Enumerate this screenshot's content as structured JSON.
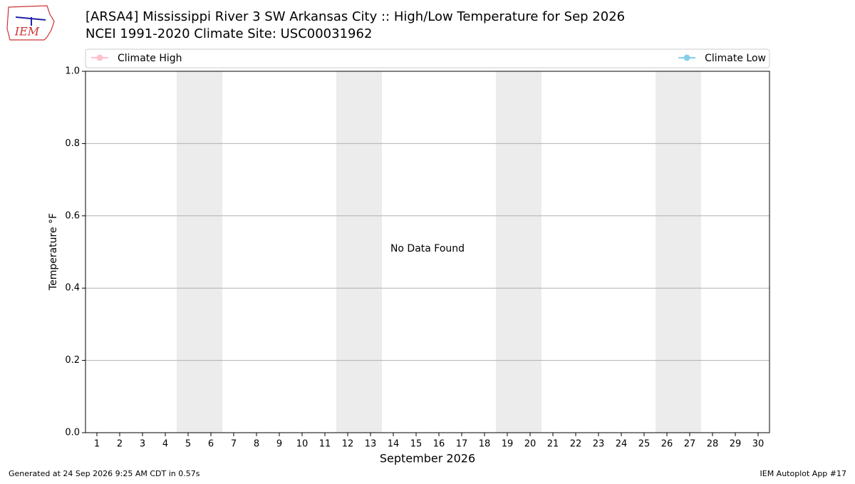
{
  "logo": {
    "text": "IEM"
  },
  "footer": {
    "left": "Generated at 24 Sep 2026 9:25 AM CDT in 0.57s",
    "right": "IEM Autoplot App #17"
  },
  "chart_data": {
    "type": "line",
    "title": "[ARSA4] Mississippi River 3 SW Arkansas City :: High/Low Temperature for Sep 2026",
    "subtitle": "NCEI 1991-2020 Climate Site: USC00031962",
    "x_label": "September 2026",
    "y_label": "Temperature °F",
    "annotation": "No Data Found",
    "x": [
      1,
      2,
      3,
      4,
      5,
      6,
      7,
      8,
      9,
      10,
      11,
      12,
      13,
      14,
      15,
      16,
      17,
      18,
      19,
      20,
      21,
      22,
      23,
      24,
      25,
      26,
      27,
      28,
      29,
      30
    ],
    "series": [
      {
        "name": "Climate High",
        "color": "#ffc0cb",
        "values": [
          null,
          null,
          null,
          null,
          null,
          null,
          null,
          null,
          null,
          null,
          null,
          null,
          null,
          null,
          null,
          null,
          null,
          null,
          null,
          null,
          null,
          null,
          null,
          null,
          null,
          null,
          null,
          null,
          null,
          null
        ]
      },
      {
        "name": "Climate Low",
        "color": "#87ceeb",
        "values": [
          null,
          null,
          null,
          null,
          null,
          null,
          null,
          null,
          null,
          null,
          null,
          null,
          null,
          null,
          null,
          null,
          null,
          null,
          null,
          null,
          null,
          null,
          null,
          null,
          null,
          null,
          null,
          null,
          null,
          null
        ]
      }
    ],
    "xlim": [
      0.5,
      30.5
    ],
    "xticks": [
      1,
      2,
      3,
      4,
      5,
      6,
      7,
      8,
      9,
      10,
      11,
      12,
      13,
      14,
      15,
      16,
      17,
      18,
      19,
      20,
      21,
      22,
      23,
      24,
      25,
      26,
      27,
      28,
      29,
      30
    ],
    "ylim": [
      0,
      1
    ],
    "yticks": [
      {
        "value": 0,
        "label": "0.0"
      },
      0.2,
      0.4,
      0.6,
      0.8,
      {
        "value": 1,
        "label": "1.0"
      }
    ],
    "grid": true,
    "shaded_spans": [
      [
        4.5,
        6.5
      ],
      [
        11.5,
        13.5
      ],
      [
        18.5,
        20.5
      ],
      [
        25.5,
        27.5
      ]
    ],
    "shade_color": "#ececec"
  }
}
